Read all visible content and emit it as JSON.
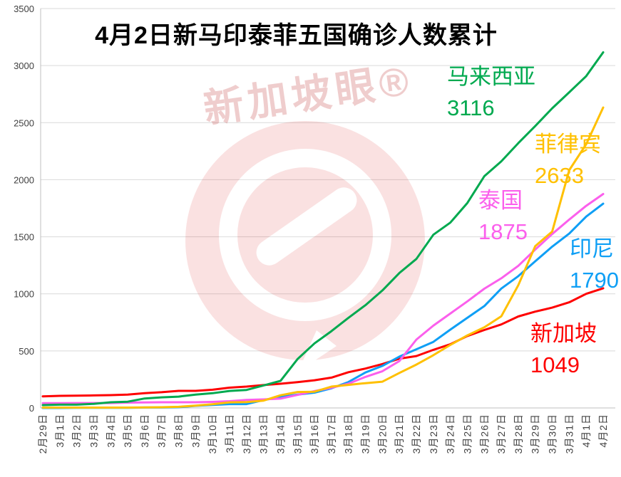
{
  "title": "4月2日新马印泰菲五国确诊人数累计",
  "watermark": {
    "text": "新加坡眼®"
  },
  "annotations": [
    {
      "id": "malaysia",
      "name": "马来西亚",
      "value": "3116",
      "color": "#00A94F"
    },
    {
      "id": "philippines",
      "name": "菲律宾",
      "value": "2633",
      "color": "#FFC000"
    },
    {
      "id": "thailand",
      "name": "泰国",
      "value": "1875",
      "color": "#FB5FEC"
    },
    {
      "id": "indonesia",
      "name": "印尼",
      "value": "1790",
      "color": "#0F9FF5"
    },
    {
      "id": "singapore",
      "name": "新加坡",
      "value": "1049",
      "color": "#FE0000"
    }
  ],
  "chart_data": {
    "type": "line",
    "title": "4月2日新马印泰菲五国确诊人数累计",
    "xlabel": "",
    "ylabel": "",
    "ylim": [
      0,
      3500
    ],
    "y_ticks": [
      0,
      500,
      1000,
      1500,
      2000,
      2500,
      3000,
      3500
    ],
    "grid": "horizontal",
    "legend_position": "inline-labels-right",
    "categories": [
      "2月29日",
      "3月1日",
      "3月2日",
      "3月3日",
      "3月4日",
      "3月5日",
      "3月6日",
      "3月7日",
      "3月8日",
      "3月9日",
      "3月10日",
      "3月11日",
      "3月12日",
      "3月13日",
      "3月14日",
      "3月15日",
      "3月16日",
      "3月17日",
      "3月18日",
      "3月19日",
      "3月20日",
      "3月21日",
      "3月22日",
      "3月23日",
      "3月24日",
      "3月25日",
      "3月26日",
      "3月27日",
      "3月28日",
      "3月29日",
      "3月30日",
      "3月31日",
      "4月1日",
      "4月2日"
    ],
    "series": [
      {
        "name": "马来西亚",
        "final": 3116,
        "color": "#00A94F",
        "values": [
          25,
          29,
          29,
          36,
          50,
          55,
          83,
          93,
          99,
          117,
          129,
          149,
          158,
          197,
          238,
          428,
          566,
          673,
          790,
          900,
          1030,
          1183,
          1306,
          1518,
          1624,
          1796,
          2031,
          2161,
          2320,
          2470,
          2626,
          2766,
          2908,
          3116
        ]
      },
      {
        "name": "菲律宾",
        "final": 2633,
        "color": "#FFC000",
        "values": [
          3,
          3,
          3,
          3,
          3,
          3,
          5,
          6,
          10,
          20,
          33,
          49,
          52,
          64,
          111,
          140,
          142,
          187,
          202,
          217,
          230,
          307,
          380,
          462,
          552,
          636,
          707,
          803,
          1075,
          1418,
          1546,
          2084,
          2311,
          2633
        ]
      },
      {
        "name": "泰国",
        "final": 1875,
        "color": "#FB5FEC",
        "values": [
          42,
          42,
          43,
          43,
          43,
          47,
          48,
          50,
          50,
          50,
          53,
          59,
          70,
          75,
          82,
          114,
          147,
          177,
          212,
          272,
          322,
          411,
          599,
          721,
          827,
          934,
          1045,
          1136,
          1245,
          1388,
          1524,
          1651,
          1771,
          1875
        ]
      },
      {
        "name": "印尼",
        "final": 1790,
        "color": "#0F9FF5",
        "values": [
          0,
          0,
          2,
          2,
          2,
          2,
          4,
          4,
          6,
          19,
          27,
          34,
          34,
          69,
          96,
          117,
          134,
          172,
          227,
          311,
          369,
          450,
          514,
          579,
          686,
          790,
          893,
          1046,
          1155,
          1285,
          1414,
          1528,
          1677,
          1790
        ]
      },
      {
        "name": "新加坡",
        "final": 1049,
        "color": "#FE0000",
        "values": [
          102,
          106,
          108,
          110,
          112,
          117,
          130,
          138,
          150,
          150,
          160,
          178,
          187,
          200,
          212,
          226,
          243,
          266,
          313,
          345,
          385,
          432,
          455,
          509,
          558,
          631,
          683,
          732,
          802,
          844,
          879,
          926,
          1000,
          1049
        ]
      }
    ]
  }
}
